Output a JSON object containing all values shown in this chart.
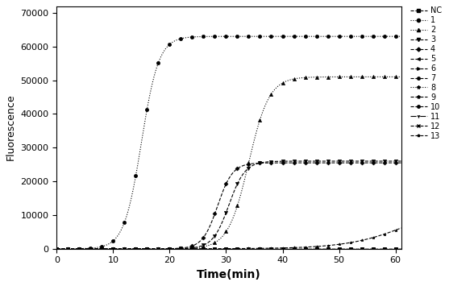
{
  "title": "",
  "xlabel": "Time(min)",
  "ylabel": "Fluorescence",
  "xlim": [
    0,
    61
  ],
  "ylim": [
    0,
    72000
  ],
  "yticks": [
    0,
    10000,
    20000,
    30000,
    40000,
    50000,
    60000,
    70000
  ],
  "xticks": [
    0,
    10,
    20,
    30,
    40,
    50,
    60
  ],
  "series": [
    {
      "label": "NC",
      "plateau": 200,
      "t_mid": 999,
      "steepness": 1.0,
      "color": "black",
      "ls": "--",
      "marker": "s",
      "ms": 2.5,
      "lw": 0.8
    },
    {
      "label": "1",
      "plateau": 63000,
      "t_mid": 15,
      "steepness": 0.65,
      "color": "black",
      "ls": ":",
      "marker": "o",
      "ms": 3.0,
      "lw": 0.8
    },
    {
      "label": "2",
      "plateau": 51000,
      "t_mid": 34,
      "steepness": 0.55,
      "color": "black",
      "ls": ":",
      "marker": "^",
      "ms": 3.0,
      "lw": 0.8
    },
    {
      "label": "3",
      "plateau": 26000,
      "t_mid": 30.5,
      "steepness": 0.7,
      "color": "black",
      "ls": "--",
      "marker": "v",
      "ms": 3.0,
      "lw": 0.8
    },
    {
      "label": "4",
      "plateau": 25500,
      "t_mid": 28.5,
      "steepness": 0.75,
      "color": "black",
      "ls": "--",
      "marker": "D",
      "ms": 2.5,
      "lw": 0.8
    },
    {
      "label": "5",
      "plateau": 200,
      "t_mid": 999,
      "steepness": 1.0,
      "color": "black",
      "ls": "--",
      "marker": "<",
      "ms": 2.5,
      "lw": 0.8
    },
    {
      "label": "6",
      "plateau": 200,
      "t_mid": 999,
      "steepness": 1.0,
      "color": "black",
      "ls": "--",
      "marker": ">",
      "ms": 2.5,
      "lw": 0.8
    },
    {
      "label": "7",
      "plateau": 200,
      "t_mid": 999,
      "steepness": 1.0,
      "color": "black",
      "ls": "--",
      "marker": "o",
      "ms": 2.5,
      "lw": 0.8
    },
    {
      "label": "8",
      "plateau": 200,
      "t_mid": 999,
      "steepness": 1.0,
      "color": "black",
      "ls": ":",
      "marker": "*",
      "ms": 3.0,
      "lw": 0.8
    },
    {
      "label": "9",
      "plateau": 200,
      "t_mid": 999,
      "steepness": 1.0,
      "color": "black",
      "ls": "--",
      "marker": "p",
      "ms": 2.5,
      "lw": 0.8
    },
    {
      "label": "10",
      "plateau": 200,
      "t_mid": 999,
      "steepness": 1.0,
      "color": "black",
      "ls": "--",
      "marker": "o",
      "ms": 2.5,
      "lw": 0.8
    },
    {
      "label": "11",
      "plateau": 200,
      "t_mid": 999,
      "steepness": 1.0,
      "color": "black",
      "ls": "-.",
      "marker": "1",
      "ms": 3.0,
      "lw": 0.8
    },
    {
      "label": "12",
      "plateau": 200,
      "t_mid": 999,
      "steepness": 1.0,
      "color": "black",
      "ls": "--",
      "marker": "x",
      "ms": 2.5,
      "lw": 0.8
    },
    {
      "label": "13",
      "plateau": 15000,
      "t_mid": 63,
      "steepness": 0.18,
      "color": "black",
      "ls": "--",
      "marker": "*",
      "ms": 2.5,
      "lw": 0.8
    }
  ]
}
